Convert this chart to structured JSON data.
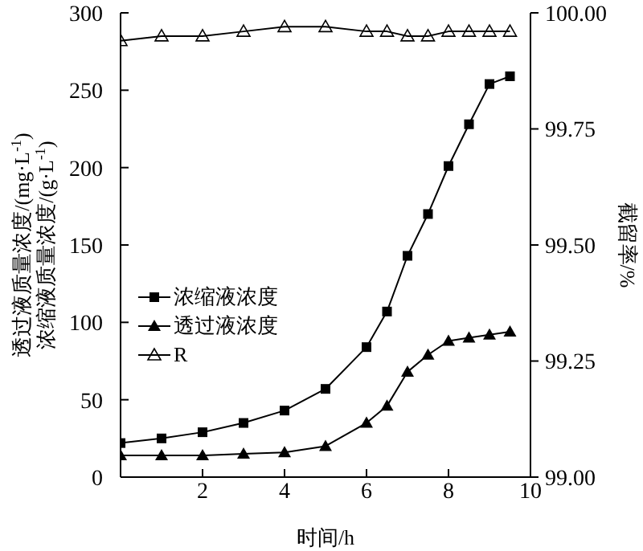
{
  "chart_data": {
    "type": "line",
    "xlabel": "时间/h",
    "ylabel": "透过液质量浓度/(mg·L$^{-1}$)\n浓缩液质量浓度/(g·L$^{-1}$)",
    "y2label": "截留率/%",
    "x": [
      0,
      1,
      2,
      3,
      4,
      5,
      6,
      6.5,
      7,
      7.5,
      8,
      8.5,
      9,
      9.5
    ],
    "series": [
      {
        "name": "浓缩液浓度",
        "color": "#000000",
        "marker": "square",
        "values": [
          22,
          25,
          29,
          35,
          43,
          57,
          84,
          107,
          143,
          170,
          201,
          228,
          254,
          259
        ]
      },
      {
        "name": "透过液浓度",
        "color": "#000000",
        "marker": "triangle",
        "values": [
          14,
          14,
          14,
          15,
          16,
          20,
          35,
          46,
          68,
          79,
          88,
          90,
          92,
          94
        ]
      },
      {
        "name": "R",
        "color": "#000000",
        "marker": "triangle",
        "axis": "y2",
        "values": [
          99.94,
          99.95,
          99.95,
          99.96,
          99.97,
          99.97,
          99.96,
          99.96,
          99.95,
          99.95,
          99.96,
          99.96,
          99.96,
          99.96
        ]
      }
    ],
    "xlim": [
      0,
      10
    ],
    "xticks": [
      2,
      4,
      6,
      8,
      10
    ],
    "ylim": [
      0,
      300
    ],
    "yticks": [
      0,
      50,
      100,
      150,
      200,
      250,
      300
    ],
    "y2lim": [
      99,
      100
    ],
    "y2ticks": [
      {
        "value": 99,
        "label": "99.00"
      },
      {
        "value": 99.25,
        "label": "99.25"
      },
      {
        "value": 99.5,
        "label": "99.50"
      },
      {
        "value": 99.75,
        "label": "99.75"
      },
      {
        "value": 100,
        "label": "100.00"
      }
    ],
    "grid": false,
    "legend": "left",
    "line_style": "solid"
  }
}
